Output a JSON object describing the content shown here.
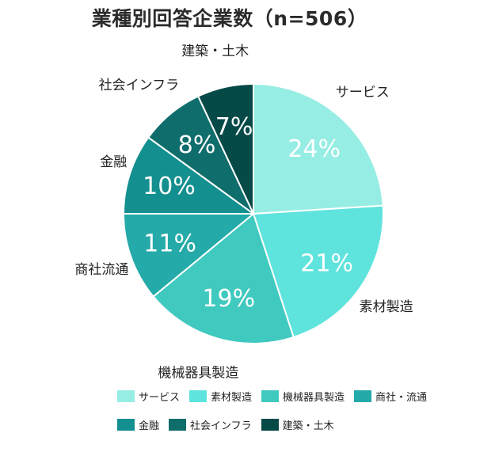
{
  "title": "業種別回答企業数（n=506）",
  "chart_data": {
    "type": "pie",
    "slices": [
      {
        "label": "サービス",
        "value": 24,
        "display": "24%",
        "color": "#96ede4"
      },
      {
        "label": "素材製造",
        "value": 21,
        "display": "21%",
        "color": "#5fe3dd"
      },
      {
        "label": "機械器具製造",
        "value": 19,
        "display": "19%",
        "color": "#40c9bf"
      },
      {
        "label": "商社流通",
        "value": 11,
        "display": "11%",
        "color": "#24aaa8"
      },
      {
        "label": "金融",
        "value": 10,
        "display": "10%",
        "color": "#148f8f"
      },
      {
        "label": "社会インフラ",
        "value": 8,
        "display": "8%",
        "color": "#0f6d6c"
      },
      {
        "label": "建築・土木",
        "value": 7,
        "display": "7%",
        "color": "#064a48"
      }
    ],
    "legend": {
      "position": "bottom",
      "rows": [
        [
          {
            "label": "サービス",
            "color": "#96ede4"
          },
          {
            "label": "素材製造",
            "color": "#5fe3dd"
          },
          {
            "label": "機械器具製造",
            "color": "#40c9bf"
          },
          {
            "label": "商社・流通",
            "color": "#24aaa8"
          }
        ],
        [
          {
            "label": "金融",
            "color": "#148f8f"
          },
          {
            "label": "社会インフラ",
            "color": "#0f6d6c"
          },
          {
            "label": "建築・土木",
            "color": "#064a48"
          }
        ]
      ]
    }
  }
}
